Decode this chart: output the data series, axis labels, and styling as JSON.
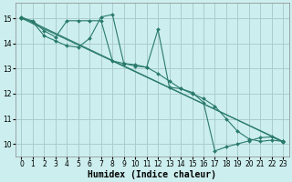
{
  "xlabel": "Humidex (Indice chaleur)",
  "ylabel": "",
  "bg_color": "#cceeee",
  "grid_color": "#aacccc",
  "line_color": "#2a7a6a",
  "xlim": [
    -0.5,
    23.5
  ],
  "ylim": [
    9.5,
    15.6
  ],
  "xticks": [
    0,
    1,
    2,
    3,
    4,
    5,
    6,
    7,
    8,
    9,
    10,
    11,
    12,
    13,
    14,
    15,
    16,
    17,
    18,
    19,
    20,
    21,
    22,
    23
  ],
  "yticks": [
    10,
    11,
    12,
    13,
    14,
    15
  ],
  "lines": [
    {
      "x": [
        0,
        1,
        2,
        3,
        4,
        5,
        6,
        7,
        8,
        9,
        10,
        11,
        12,
        13,
        14,
        15,
        16,
        17,
        18,
        19,
        20,
        21,
        22,
        23
      ],
      "y": [
        15.0,
        14.9,
        14.5,
        14.25,
        14.9,
        14.9,
        14.9,
        14.9,
        13.3,
        13.2,
        13.1,
        13.05,
        12.8,
        12.5,
        12.2,
        12.0,
        11.8,
        11.5,
        11.0,
        10.5,
        10.2,
        10.1,
        10.15,
        10.1
      ]
    },
    {
      "x": [
        0,
        1,
        2,
        3,
        4,
        5,
        6,
        7,
        8,
        9,
        10,
        11,
        12,
        13,
        14,
        15,
        16,
        17,
        18,
        19,
        20,
        21,
        22,
        23
      ],
      "y": [
        15.05,
        14.85,
        14.3,
        14.1,
        13.9,
        13.85,
        14.2,
        15.05,
        15.15,
        13.2,
        13.15,
        13.05,
        14.55,
        12.25,
        12.2,
        12.05,
        11.65,
        9.72,
        9.88,
        10.0,
        10.12,
        10.25,
        10.28,
        10.08
      ]
    },
    {
      "x": [
        0,
        23
      ],
      "y": [
        15.0,
        10.1
      ]
    },
    {
      "x": [
        0,
        23
      ],
      "y": [
        15.05,
        10.08
      ]
    }
  ],
  "xlabel_fontsize": 7,
  "tick_fontsize": 5.5
}
